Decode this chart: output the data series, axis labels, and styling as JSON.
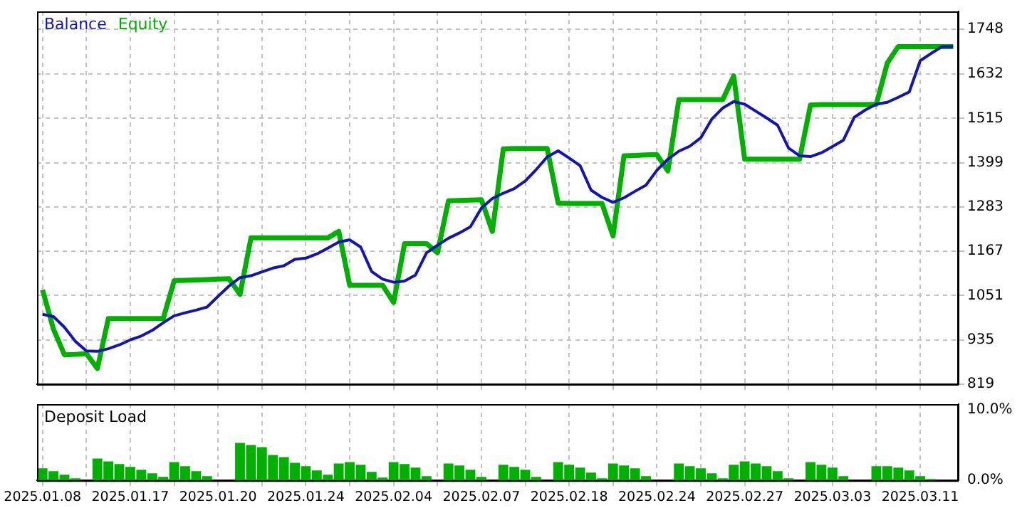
{
  "chart_data": [
    {
      "type": "line",
      "legend": "top left",
      "marker": "none",
      "grid": true,
      "tick_labels": "y",
      "categories": [
        "2025.01.08",
        null,
        null,
        null,
        null,
        null,
        null,
        null,
        "2025.01.17",
        null,
        null,
        null,
        null,
        null,
        null,
        null,
        "2025.01.20",
        null,
        null,
        null,
        null,
        null,
        null,
        null,
        "2025.01.24",
        null,
        null,
        null,
        null,
        null,
        null,
        null,
        "2025.02.04",
        null,
        null,
        null,
        null,
        null,
        null,
        null,
        "2025.02.07",
        null,
        null,
        null,
        null,
        null,
        null,
        null,
        "2025.02.18",
        null,
        null,
        null,
        null,
        null,
        null,
        null,
        "2025.02.24",
        null,
        null,
        null,
        null,
        null,
        null,
        null,
        "2025.02.27",
        null,
        null,
        null,
        null,
        null,
        null,
        null,
        "2025.03.03",
        null,
        null,
        null,
        null,
        null,
        null,
        null,
        "2025.03.11",
        null,
        null,
        null
      ],
      "ylim": [
        819,
        1795
      ],
      "yticks": [
        819,
        935,
        1051,
        1167,
        1283,
        1399,
        1515,
        1632,
        1748
      ],
      "series": [
        {
          "name": "Balance",
          "color": "#1414b4",
          "values": [
            1002,
            996,
            968,
            931,
            906,
            905,
            912,
            922,
            935,
            945,
            960,
            980,
            998,
            1006,
            1013,
            1021,
            1049,
            1076,
            1098,
            1103,
            1113,
            1123,
            1129,
            1146,
            1149,
            1160,
            1175,
            1191,
            1197,
            1178,
            1114,
            1094,
            1086,
            1089,
            1105,
            1163,
            1183,
            1201,
            1215,
            1231,
            1280,
            1305,
            1319,
            1331,
            1351,
            1381,
            1414,
            1430,
            1411,
            1391,
            1327,
            1308,
            1295,
            1307,
            1324,
            1340,
            1379,
            1408,
            1429,
            1442,
            1464,
            1513,
            1542,
            1559,
            1552,
            1534,
            1516,
            1497,
            1437,
            1417,
            1415,
            1425,
            1441,
            1458,
            1518,
            1537,
            1552,
            1557,
            1570,
            1584,
            1666,
            1685,
            1703,
            1703
          ]
        },
        {
          "name": "Equity",
          "color": "#00b000",
          "values": [
            1066,
            963,
            896,
            897,
            899,
            860,
            991,
            991,
            991,
            991,
            991,
            991,
            1090,
            1091,
            1092,
            1093,
            1094,
            1095,
            1054,
            1202,
            1202,
            1202,
            1202,
            1202,
            1202,
            1202,
            1202,
            1219,
            1078,
            1078,
            1078,
            1078,
            1033,
            1187,
            1187,
            1187,
            1163,
            1299,
            1300,
            1301,
            1302,
            1219,
            1435,
            1436,
            1436,
            1436,
            1436,
            1293,
            1292,
            1292,
            1292,
            1292,
            1207,
            1417,
            1418,
            1419,
            1420,
            1377,
            1564,
            1564,
            1564,
            1564,
            1564,
            1626,
            1408,
            1408,
            1408,
            1408,
            1408,
            1408,
            1550,
            1551,
            1551,
            1551,
            1551,
            1551,
            1552,
            1660,
            1703,
            1703,
            1703,
            1703,
            1703,
            1703
          ]
        }
      ]
    },
    {
      "type": "bar",
      "title": "Deposit Load",
      "grid": "x",
      "color": "#00b000",
      "categories": [
        "2025.01.08",
        null,
        null,
        null,
        null,
        null,
        null,
        null,
        "2025.01.17",
        null,
        null,
        null,
        null,
        null,
        null,
        null,
        "2025.01.20",
        null,
        null,
        null,
        null,
        null,
        null,
        null,
        "2025.01.24",
        null,
        null,
        null,
        null,
        null,
        null,
        null,
        "2025.02.04",
        null,
        null,
        null,
        null,
        null,
        null,
        null,
        "2025.02.07",
        null,
        null,
        null,
        null,
        null,
        null,
        null,
        "2025.02.18",
        null,
        null,
        null,
        null,
        null,
        null,
        null,
        "2025.02.24",
        null,
        null,
        null,
        null,
        null,
        null,
        null,
        "2025.02.27",
        null,
        null,
        null,
        null,
        null,
        null,
        null,
        "2025.03.03",
        null,
        null,
        null,
        null,
        null,
        null,
        null,
        "2025.03.11",
        null,
        null,
        null
      ],
      "ylim": [
        0,
        10.8
      ],
      "yticks": [
        {
          "value": 0,
          "label": "0.0%"
        },
        {
          "value": 10,
          "label": "10.0%"
        }
      ],
      "values": [
        1.7,
        1.3,
        0.8,
        0.3,
        null,
        3.1,
        2.7,
        2.3,
        1.9,
        1.5,
        1.0,
        0.5,
        2.6,
        2.0,
        1.3,
        0.6,
        null,
        null,
        5.3,
        5.0,
        4.7,
        3.6,
        3.3,
        2.5,
        2.0,
        1.4,
        0.8,
        2.4,
        2.6,
        2.2,
        1.2,
        0.4,
        2.6,
        2.3,
        1.8,
        0.6,
        null,
        2.4,
        2.1,
        1.5,
        0.5,
        null,
        2.2,
        1.9,
        1.5,
        0.5,
        null,
        2.6,
        2.2,
        1.8,
        1.1,
        0.3,
        2.4,
        2.1,
        1.7,
        0.6,
        null,
        null,
        2.4,
        2.0,
        1.7,
        1.0,
        0.3,
        2.2,
        2.7,
        2.4,
        2.0,
        1.3,
        0.3,
        null,
        2.6,
        2.2,
        1.8,
        0.6,
        null,
        null,
        2.0,
        2.0,
        1.8,
        1.4,
        0.6,
        0.2,
        null,
        null
      ]
    }
  ]
}
